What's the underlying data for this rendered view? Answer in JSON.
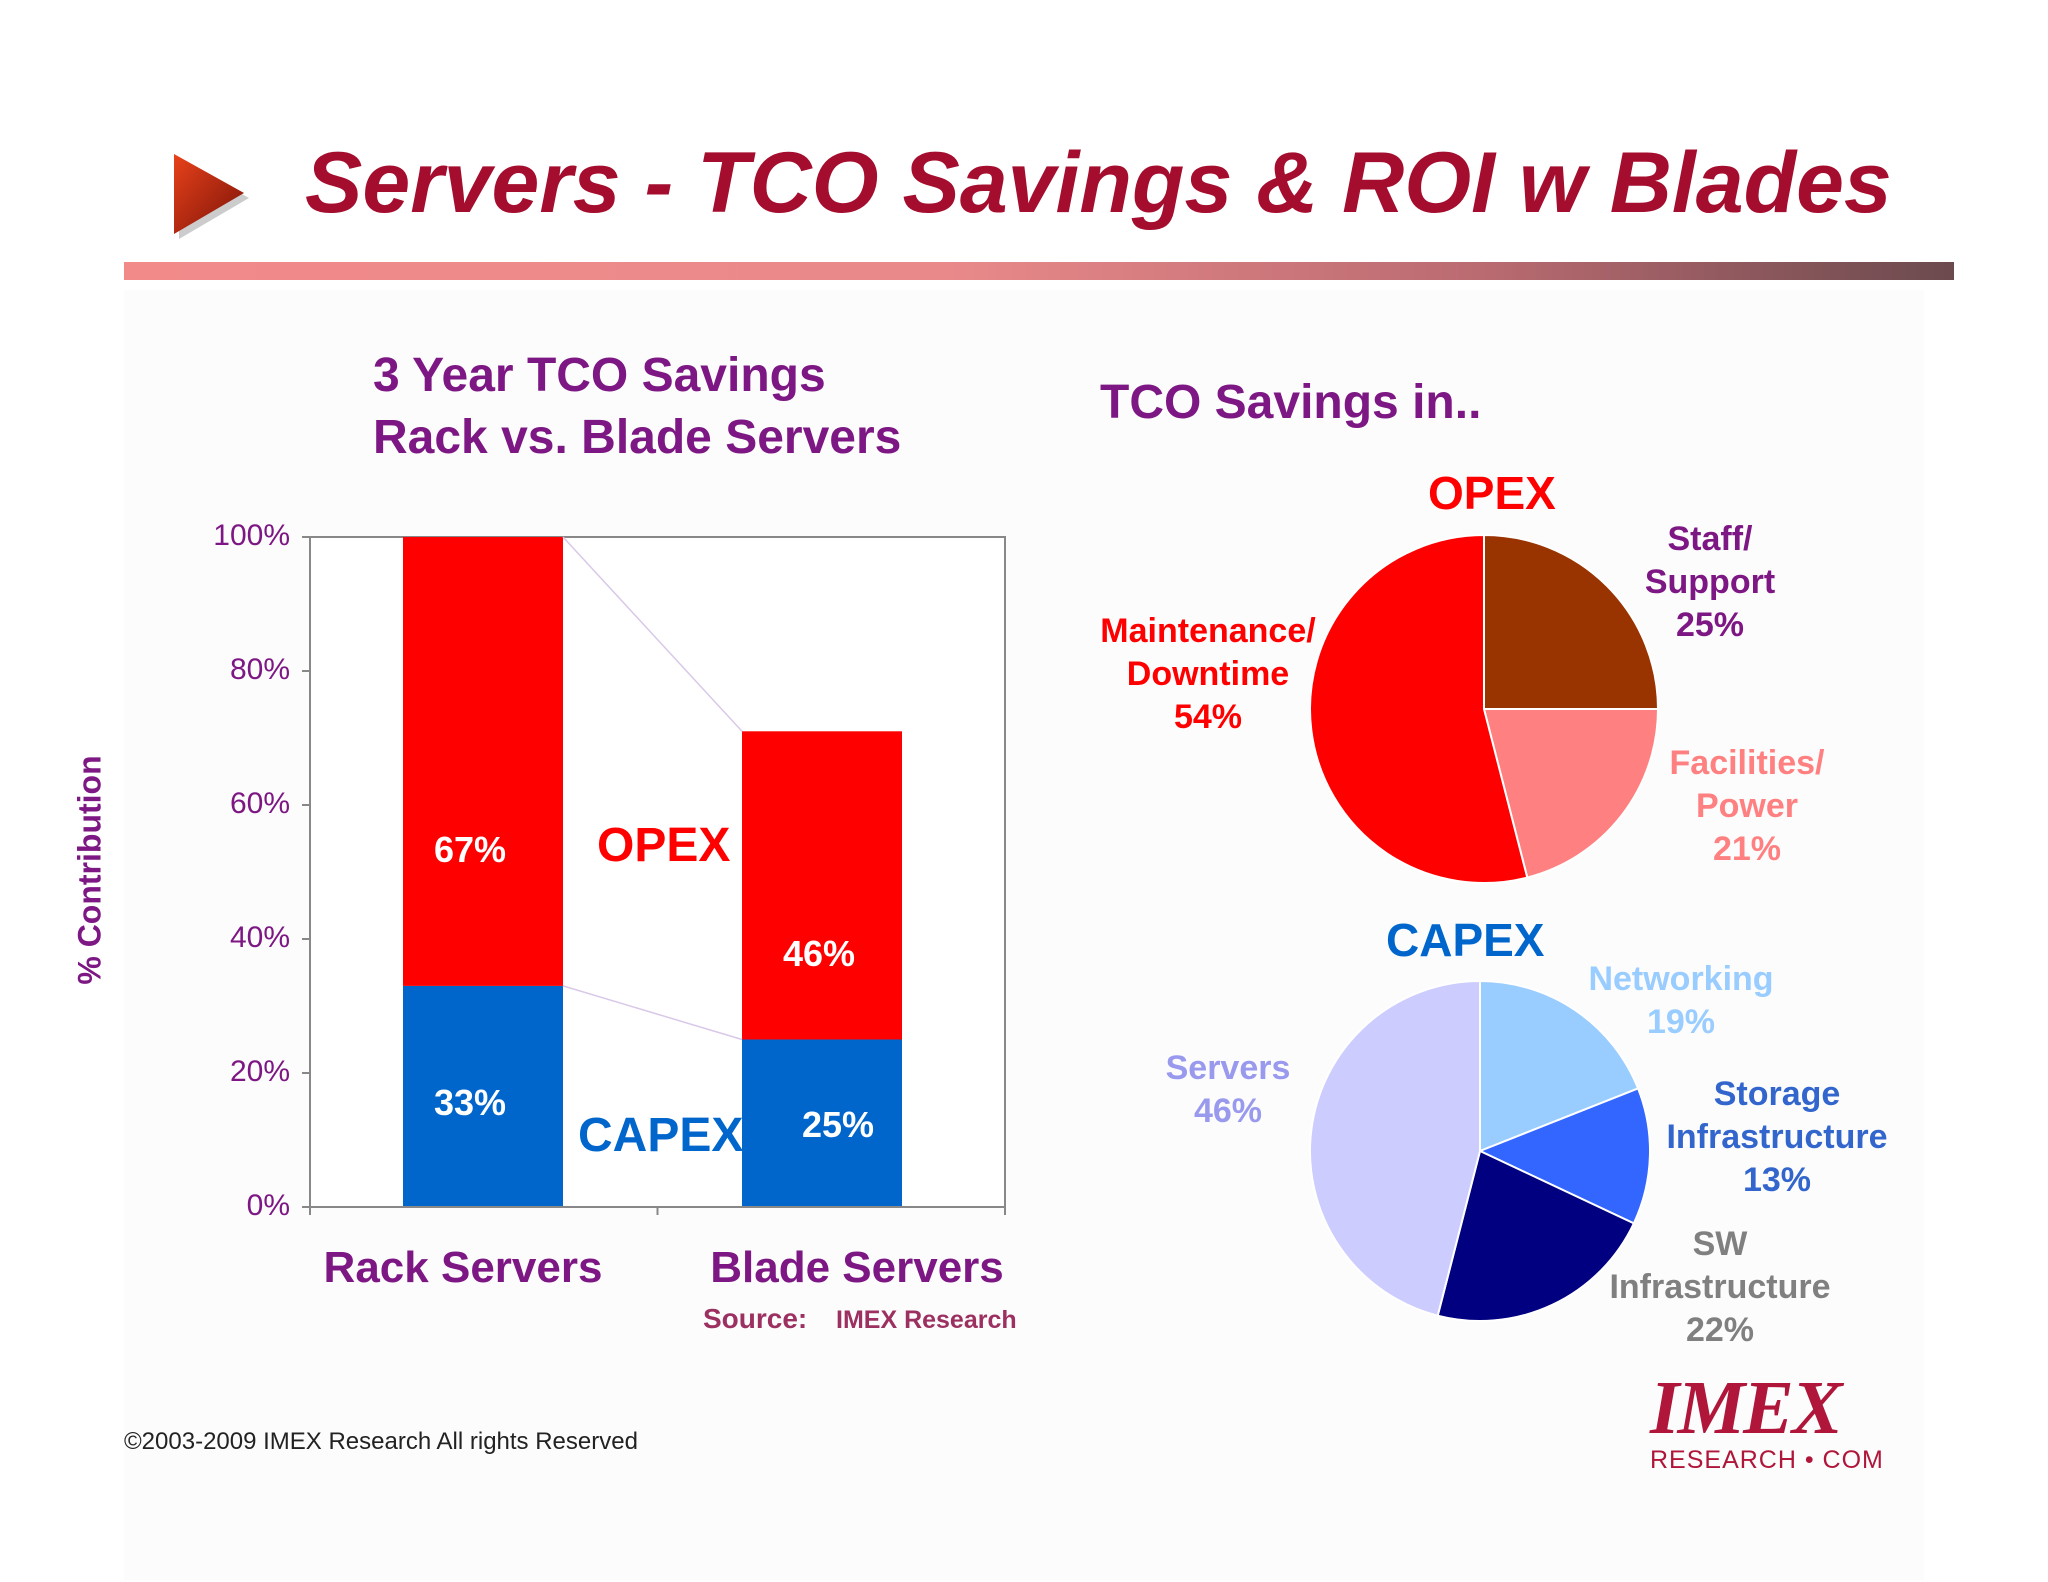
{
  "slide": {
    "title": "Servers - TCO Savings & ROI w Blades",
    "footer": "©2003-2009  IMEX Research All rights Reserved",
    "logo": {
      "main": "IMEX",
      "sub": "RESEARCH • COM"
    },
    "colors": {
      "title": "#a50d2e",
      "accent_purple": "#7d1783",
      "opex": "#ff0000",
      "capex": "#0066cc"
    }
  },
  "chart_data": [
    {
      "type": "bar",
      "stacked": true,
      "title": "3 Year TCO Savings",
      "subtitle": "Rack vs. Blade Servers",
      "ylabel": "% Contribution",
      "xlabel": "",
      "ylim": [
        0,
        100
      ],
      "yticks": [
        "0%",
        "20%",
        "40%",
        "60%",
        "80%",
        "100%"
      ],
      "categories": [
        "Rack Servers",
        "Blade Servers"
      ],
      "series": [
        {
          "name": "CAPEX",
          "values": [
            33,
            25
          ],
          "labels": [
            "33%",
            "25%"
          ],
          "color": "#0066cc"
        },
        {
          "name": "OPEX",
          "values": [
            67,
            46
          ],
          "labels": [
            "67%",
            "46%"
          ],
          "color": "#ff0000"
        }
      ],
      "source_label": "Source:",
      "source_value": "IMEX Research",
      "grid": false
    },
    {
      "type": "pie",
      "title": "TCO Savings in..",
      "name": "OPEX",
      "slices": [
        {
          "label": "Staff/",
          "label2": "Support",
          "value": 25,
          "text": "25%",
          "color": "#993300"
        },
        {
          "label": "Facilities/",
          "label2": "Power",
          "value": 21,
          "text": "21%",
          "color": "#ff8080"
        },
        {
          "label": "Maintenance/",
          "label2": "Downtime",
          "value": 54,
          "text": "54%",
          "color": "#ff0000"
        }
      ]
    },
    {
      "type": "pie",
      "name": "CAPEX",
      "slices": [
        {
          "label": "Networking",
          "label2": "",
          "value": 19,
          "text": "19%",
          "color": "#99ccff",
          "text_color": "#99ccff"
        },
        {
          "label": "Storage",
          "label2": "Infrastructure",
          "value": 13,
          "text": "13%",
          "color": "#3366ff",
          "text_color": "#3366cc"
        },
        {
          "label": "SW",
          "label2": "Infrastructure",
          "value": 22,
          "text": "22%",
          "color": "#000080",
          "text_color": "#808080"
        },
        {
          "label": "Servers",
          "label2": "",
          "value": 46,
          "text": "46%",
          "color": "#ccccff",
          "text_color": "#9999ee"
        }
      ]
    }
  ]
}
